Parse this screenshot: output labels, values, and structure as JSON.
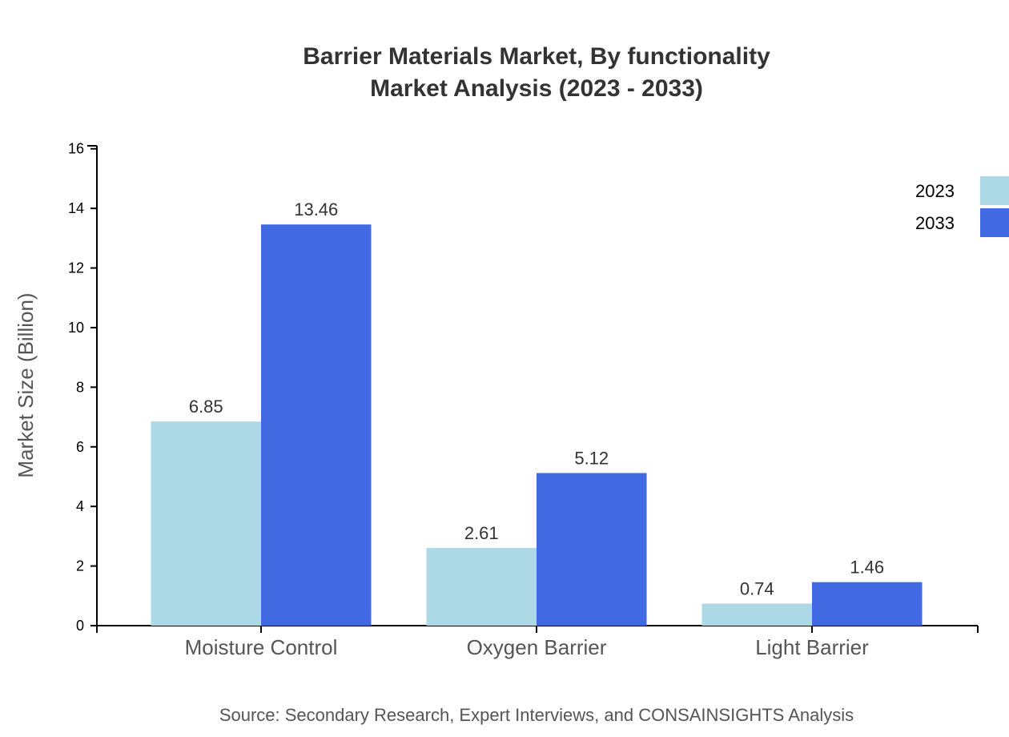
{
  "chart_data": {
    "type": "bar",
    "title": "Barrier Materials Market, By functionality",
    "subtitle": "Market Analysis (2023 - 2033)",
    "xlabel": "",
    "ylabel": "Market Size (Billion)",
    "ylim": [
      0,
      16.1
    ],
    "yticks": [
      0,
      2,
      4,
      6,
      8,
      10,
      12,
      14,
      16
    ],
    "categories": [
      "Moisture Control",
      "Oxygen Barrier",
      "Light Barrier"
    ],
    "series": [
      {
        "name": "2023",
        "values": [
          6.85,
          2.61,
          0.74
        ],
        "color": "#add8e6"
      },
      {
        "name": "2033",
        "values": [
          13.46,
          5.12,
          1.46
        ],
        "color": "#4169e1"
      }
    ],
    "legend_position": "top-right",
    "grid": false,
    "source": "Source: Secondary Research, Expert Interviews, and CONSAINSIGHTS Analysis"
  }
}
